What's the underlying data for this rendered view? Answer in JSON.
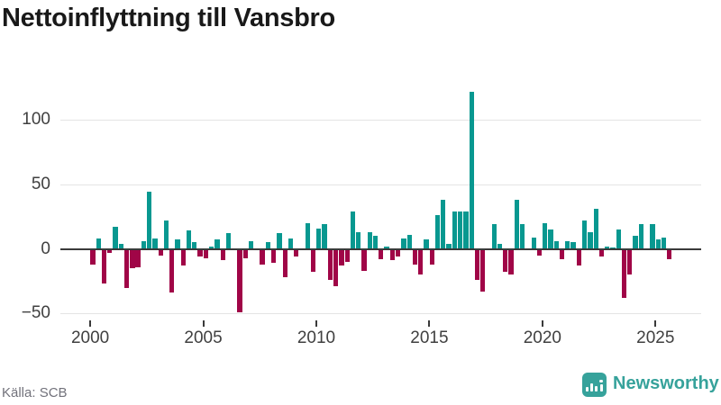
{
  "title": "Nettoinflyttning till Vansbro",
  "source": {
    "label": "Källa: SCB"
  },
  "branding": {
    "name": "Newsworthy",
    "icon": "newsworthy-bar-chart-speech-bubble"
  },
  "colors": {
    "positive": "#089890",
    "negative": "#a00547",
    "zero_line": "#3a3a3a",
    "gridline": "#e4e4e4",
    "axis_text": "#404040",
    "title_text": "#191919",
    "source_text": "#72727b",
    "brand_teal": "#36a29b"
  },
  "chart_data": {
    "type": "bar",
    "title": "Nettoinflyttning till Vansbro",
    "xlabel": "",
    "ylabel": "",
    "x_unit": "quarter",
    "grid": "horizontal",
    "legend": "none",
    "ylim": [
      -58,
      132
    ],
    "y_ticks": [
      100,
      50,
      0,
      -50
    ],
    "y_tick_labels": [
      "100",
      "50",
      "0",
      "−50"
    ],
    "x_tick_years": [
      2000,
      2005,
      2010,
      2015,
      2020,
      2025
    ],
    "x": [
      "2000Q1",
      "2000Q2",
      "2000Q3",
      "2000Q4",
      "2001Q1",
      "2001Q2",
      "2001Q3",
      "2001Q4",
      "2002Q1",
      "2002Q2",
      "2002Q3",
      "2002Q4",
      "2003Q1",
      "2003Q2",
      "2003Q3",
      "2003Q4",
      "2004Q1",
      "2004Q2",
      "2004Q3",
      "2004Q4",
      "2005Q1",
      "2005Q2",
      "2005Q3",
      "2005Q4",
      "2006Q1",
      "2006Q2",
      "2006Q3",
      "2006Q4",
      "2007Q1",
      "2007Q2",
      "2007Q3",
      "2007Q4",
      "2008Q1",
      "2008Q2",
      "2008Q3",
      "2008Q4",
      "2009Q1",
      "2009Q2",
      "2009Q3",
      "2009Q4",
      "2010Q1",
      "2010Q2",
      "2010Q3",
      "2010Q4",
      "2011Q1",
      "2011Q2",
      "2011Q3",
      "2011Q4",
      "2012Q1",
      "2012Q2",
      "2012Q3",
      "2012Q4",
      "2013Q1",
      "2013Q2",
      "2013Q3",
      "2013Q4",
      "2014Q1",
      "2014Q2",
      "2014Q3",
      "2014Q4",
      "2015Q1",
      "2015Q2",
      "2015Q3",
      "2015Q4",
      "2016Q1",
      "2016Q2",
      "2016Q3",
      "2016Q4",
      "2017Q1",
      "2017Q2",
      "2017Q3",
      "2017Q4",
      "2018Q1",
      "2018Q2",
      "2018Q3",
      "2018Q4",
      "2019Q1",
      "2019Q2",
      "2019Q3",
      "2019Q4",
      "2020Q1",
      "2020Q2",
      "2020Q3",
      "2020Q4",
      "2021Q1",
      "2021Q2",
      "2021Q3",
      "2021Q4",
      "2022Q1",
      "2022Q2",
      "2022Q3",
      "2022Q4",
      "2023Q1",
      "2023Q2",
      "2023Q3",
      "2023Q4",
      "2024Q1",
      "2024Q2",
      "2024Q3",
      "2024Q4",
      "2025Q1",
      "2025Q2",
      "2025Q3"
    ],
    "values": [
      -12,
      8,
      -27,
      -3,
      17,
      4,
      -30,
      -15,
      -14,
      6,
      44,
      8,
      -5,
      22,
      -34,
      7,
      -13,
      14,
      5,
      -6,
      -7,
      2,
      7,
      -9,
      12,
      0,
      -49,
      -7,
      6,
      0,
      -12,
      5,
      -11,
      12,
      -22,
      8,
      -6,
      0,
      20,
      -18,
      16,
      19,
      -24,
      -29,
      -13,
      -10,
      29,
      13,
      -17,
      13,
      10,
      -8,
      2,
      -9,
      -6,
      8,
      11,
      -12,
      -20,
      7,
      -12,
      26,
      38,
      4,
      29,
      29,
      29,
      122,
      -24,
      -33,
      0,
      19,
      4,
      -18,
      -20,
      38,
      19,
      0,
      9,
      -5,
      20,
      15,
      6,
      -8,
      6,
      5,
      -13,
      22,
      13,
      31,
      -6,
      2,
      1,
      15,
      -38,
      -20,
      10,
      19,
      0,
      19,
      7,
      9,
      -8
    ]
  }
}
